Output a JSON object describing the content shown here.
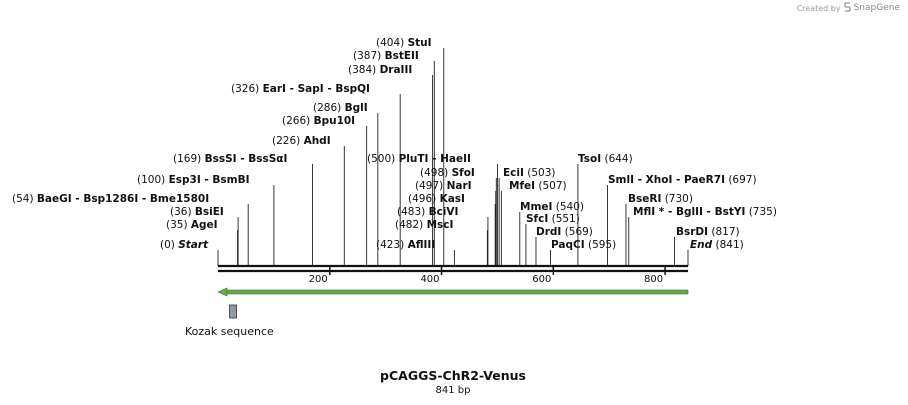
{
  "credit": {
    "prefix": "Created by",
    "brand": "SnapGene"
  },
  "plasmid": {
    "name": "pCAGGS-ChR2-Venus",
    "length_label": "841 bp",
    "length_bp": 841
  },
  "ruler": {
    "ticks": [
      200,
      400,
      600,
      800
    ]
  },
  "sites": [
    {
      "pos": 0,
      "line": "(0)",
      "names": [
        "Start"
      ],
      "italic": true
    },
    {
      "pos": 35,
      "line": "(35)",
      "names": [
        "AgeI"
      ]
    },
    {
      "pos": 36,
      "line": "(36)",
      "names": [
        "BsiEI"
      ]
    },
    {
      "pos": 54,
      "line": "(54)",
      "names": [
        "BaeGI",
        "Bsp1286I",
        "Bme1580I"
      ]
    },
    {
      "pos": 100,
      "line": "(100)",
      "names": [
        "Esp3I",
        "BsmBI"
      ]
    },
    {
      "pos": 169,
      "line": "(169)",
      "names": [
        "BssSI",
        "BssSαI"
      ]
    },
    {
      "pos": 226,
      "line": "(226)",
      "names": [
        "AhdI"
      ]
    },
    {
      "pos": 266,
      "line": "(266)",
      "names": [
        "Bpu10I"
      ]
    },
    {
      "pos": 286,
      "line": "(286)",
      "names": [
        "BglI"
      ]
    },
    {
      "pos": 326,
      "line": "(326)",
      "names": [
        "EarI",
        "SapI",
        "BspQI"
      ]
    },
    {
      "pos": 384,
      "line": "(384)",
      "names": [
        "DraIII"
      ]
    },
    {
      "pos": 387,
      "line": "(387)",
      "names": [
        "BstEII"
      ]
    },
    {
      "pos": 404,
      "line": "(404)",
      "names": [
        "StuI"
      ]
    },
    {
      "pos": 423,
      "line": "(423)",
      "names": [
        "AflIII"
      ]
    },
    {
      "pos": 482,
      "line": "(482)",
      "names": [
        "MscI"
      ]
    },
    {
      "pos": 483,
      "line": "(483)",
      "names": [
        "BciVI"
      ]
    },
    {
      "pos": 496,
      "line": "(496)",
      "names": [
        "KasI"
      ]
    },
    {
      "pos": 497,
      "line": "(497)",
      "names": [
        "NarI"
      ]
    },
    {
      "pos": 498,
      "line": "(498)",
      "names": [
        "SfoI"
      ]
    },
    {
      "pos": 500,
      "line": "(500)",
      "names": [
        "PluTI",
        "HaeII"
      ]
    },
    {
      "pos": 503,
      "line": "(503)",
      "names": [
        "EciI"
      ]
    },
    {
      "pos": 507,
      "line": "(507)",
      "names": [
        "MfeI"
      ]
    },
    {
      "pos": 540,
      "line": "(540)",
      "names": [
        "MmeI"
      ]
    },
    {
      "pos": 551,
      "line": "(551)",
      "names": [
        "SfcI"
      ]
    },
    {
      "pos": 569,
      "line": "(569)",
      "names": [
        "DrdI"
      ]
    },
    {
      "pos": 595,
      "line": "(595)",
      "names": [
        "PaqCI"
      ]
    },
    {
      "pos": 644,
      "line": "(644)",
      "names": [
        "TsoI"
      ]
    },
    {
      "pos": 697,
      "line": "(697)",
      "names": [
        "SmlI",
        "XhoI",
        "PaeR7I"
      ]
    },
    {
      "pos": 730,
      "line": "(730)",
      "names": [
        "BseRI"
      ]
    },
    {
      "pos": 735,
      "line": "(735)",
      "names": [
        "MflI *",
        "BglII",
        "BstYI"
      ]
    },
    {
      "pos": 817,
      "line": "(817)",
      "names": [
        "BsrDI"
      ]
    },
    {
      "pos": 841,
      "line": "(841)",
      "names": [
        "End"
      ],
      "italic": true
    }
  ],
  "features": {
    "orf": {
      "direction": "reverse",
      "start_bp": 0,
      "end_bp": 841,
      "color": "#6aa84f"
    },
    "kozak": {
      "label": "Kozak sequence",
      "pos_bp": 26,
      "color": "#8c9aa8"
    }
  }
}
